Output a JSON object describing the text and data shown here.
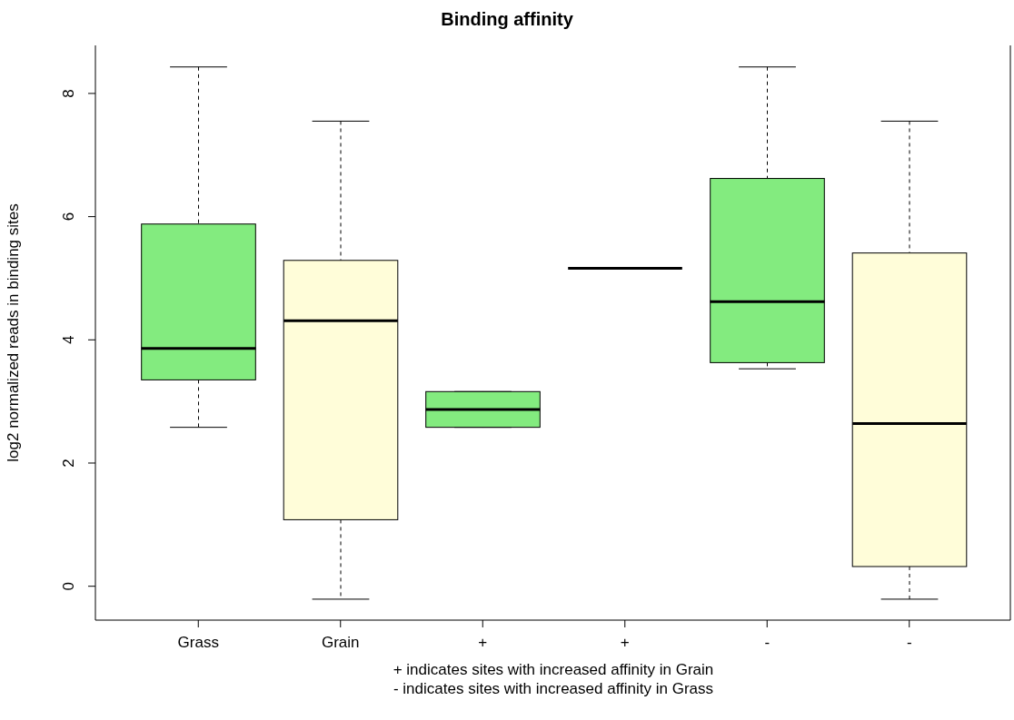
{
  "chart_data": {
    "type": "box",
    "title": "Binding affinity",
    "ylabel": "log2 normalized reads in binding sites",
    "categories": [
      "Grass",
      "Grain",
      "+",
      "+",
      "-",
      "-"
    ],
    "colors": [
      "#83eb7f",
      "#fffdd9",
      "#83eb7f",
      "#000000",
      "#83eb7f",
      "#fffdd9"
    ],
    "boxes": [
      {
        "low": 2.58,
        "q1": 3.35,
        "median": 3.86,
        "q3": 5.88,
        "high": 8.43
      },
      {
        "low": -0.21,
        "q1": 1.08,
        "median": 4.31,
        "q3": 5.29,
        "high": 7.55
      },
      {
        "low": 2.58,
        "q1": 2.58,
        "median": 2.87,
        "q3": 3.16,
        "high": 3.16
      },
      {
        "low": 5.16,
        "q1": 5.16,
        "median": 5.16,
        "q3": 5.16,
        "high": 5.16
      },
      {
        "low": 3.53,
        "q1": 3.63,
        "median": 4.62,
        "q3": 6.62,
        "high": 8.43
      },
      {
        "low": -0.21,
        "q1": 0.32,
        "median": 2.64,
        "q3": 5.41,
        "high": 7.55
      }
    ],
    "ylim": [
      -0.55,
      8.78
    ],
    "yticks": [
      0,
      2,
      4,
      6,
      8
    ],
    "annotations": [
      "+ indicates sites with increased affinity in Grain",
      "- indicates sites with increased affinity in Grass"
    ]
  }
}
